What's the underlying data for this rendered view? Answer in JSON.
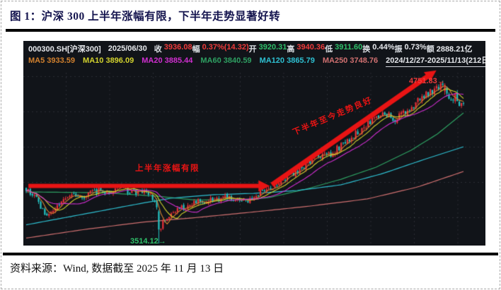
{
  "figure": {
    "title": "图 1：沪深 300 上半年涨幅有限，下半年走势显著好转",
    "source": "资料来源：Wind, 数据截至 2025 年 11 月 13 日"
  },
  "chart": {
    "header": {
      "symbol": "000300.SH[沪深300]",
      "date": "2025/06/30",
      "fields": [
        {
          "label": "收",
          "value": "3936.08",
          "color": "#ef3b3b"
        },
        {
          "label": "幅",
          "value": "0.37%(14.32)",
          "color": "#ef3b3b"
        },
        {
          "label": "开",
          "value": "3920.31",
          "color": "#2fc06a"
        },
        {
          "label": "高",
          "value": "3940.36",
          "color": "#ef3b3b"
        },
        {
          "label": "低",
          "value": "3911.60",
          "color": "#2fc06a"
        },
        {
          "label": "换",
          "value": "0.44%",
          "color": "#e6e8ec"
        },
        {
          "label": "振",
          "value": "0.73%",
          "color": "#e6e8ec"
        },
        {
          "label": "额",
          "value": "2888.21亿",
          "color": "#e6e8ec"
        }
      ],
      "ma_labels": [
        {
          "text": "MA5 3933.59",
          "color": "#d2812e"
        },
        {
          "text": "MA10 3896.09",
          "color": "#d3d32e"
        },
        {
          "text": "MA20 3885.44",
          "color": "#d02ed0"
        },
        {
          "text": "MA60 3840.59",
          "color": "#2ea062"
        },
        {
          "text": "MA120 3865.79",
          "color": "#2ec0d2"
        },
        {
          "text": "MA250 3748.76",
          "color": "#d07070"
        }
      ],
      "range": "2024/12/27-2025/11/13(212日)",
      "dropdown_icon": "▼"
    },
    "annotations": {
      "first_half": "上半年涨幅有限",
      "second_half": "下半年至今走势良好",
      "high_label": "4751.83→",
      "low_label": "3514.12→",
      "arrow_color": "#e81414",
      "high_color": "#ef3b3b",
      "low_color": "#2fc06a"
    }
  },
  "chart_data": {
    "type": "candlestick",
    "title": "沪深300 日K线 2024/12/27-2025/11/13 (212日)",
    "symbol": "000300.SH 沪深300",
    "bars": 212,
    "marked_high": 4751.83,
    "marked_low": 3514.12,
    "quote": {
      "date": "2025/06/30",
      "close": 3936.08,
      "change_pct": "0.37%",
      "change": 14.32,
      "open": 3920.31,
      "high": 3940.36,
      "low": 3911.6,
      "turnover": "0.44%",
      "amplitude": "0.73%",
      "amount": "2888.21亿"
    },
    "ma_values": {
      "MA5": 3933.59,
      "MA10": 3896.09,
      "MA20": 3885.44,
      "MA60": 3840.59,
      "MA120": 3865.79,
      "MA250": 3748.76
    },
    "y_anchor": {
      "low_price": 3514.12,
      "high_price": 4751.83
    },
    "colors": {
      "up": "#e83038",
      "down": "#25c3c3",
      "background": "#111419",
      "grid": "rgba(195,203,218,0.14)"
    },
    "close_path": [
      [
        0.0,
        3935
      ],
      [
        0.02,
        3880
      ],
      [
        0.045,
        3722
      ],
      [
        0.075,
        3800
      ],
      [
        0.105,
        3895
      ],
      [
        0.135,
        3878
      ],
      [
        0.165,
        3928
      ],
      [
        0.19,
        3918
      ],
      [
        0.215,
        3958
      ],
      [
        0.24,
        3905
      ],
      [
        0.265,
        3912
      ],
      [
        0.285,
        3885
      ],
      [
        0.3,
        3778
      ],
      [
        0.3033,
        3625
      ],
      [
        0.32,
        3705
      ],
      [
        0.35,
        3782
      ],
      [
        0.385,
        3828
      ],
      [
        0.42,
        3848
      ],
      [
        0.45,
        3868
      ],
      [
        0.48,
        3852
      ],
      [
        0.505,
        3836
      ],
      [
        0.53,
        3888
      ],
      [
        0.555,
        3936
      ],
      [
        0.58,
        3992
      ],
      [
        0.61,
        4052
      ],
      [
        0.64,
        4122
      ],
      [
        0.665,
        4198
      ],
      [
        0.69,
        4192
      ],
      [
        0.715,
        4252
      ],
      [
        0.745,
        4332
      ],
      [
        0.775,
        4422
      ],
      [
        0.8,
        4478
      ],
      [
        0.825,
        4522
      ],
      [
        0.845,
        4472
      ],
      [
        0.865,
        4522
      ],
      [
        0.89,
        4598
      ],
      [
        0.915,
        4672
      ],
      [
        0.94,
        4718
      ],
      [
        0.955,
        4742
      ],
      [
        0.965,
        4608
      ],
      [
        0.98,
        4652
      ],
      [
        0.99,
        4588
      ],
      [
        1.0,
        4625
      ]
    ],
    "special_bars": [
      {
        "t": 0.3033,
        "open": 3762,
        "close": 3622,
        "high": 3775,
        "low": 3514.12
      },
      {
        "t": 0.955,
        "open": 4690,
        "close": 4738,
        "high": 4751.83,
        "low": 4662
      }
    ],
    "ma_series": [
      {
        "name": "MA60",
        "color": "#2ea062",
        "points": [
          [
            0.005,
            3912
          ],
          [
            0.18,
            3906
          ],
          [
            0.3,
            3879
          ],
          [
            0.38,
            3852
          ],
          [
            0.47,
            3847
          ],
          [
            0.555,
            3868
          ],
          [
            0.64,
            3934
          ],
          [
            0.72,
            4010
          ],
          [
            0.8,
            4103
          ],
          [
            0.88,
            4234
          ],
          [
            0.94,
            4359
          ],
          [
            1.0,
            4523
          ]
        ]
      },
      {
        "name": "MA120",
        "color": "#2ec0d2",
        "points": [
          [
            0.005,
            3661
          ],
          [
            0.135,
            3743
          ],
          [
            0.265,
            3825
          ],
          [
            0.33,
            3863
          ],
          [
            0.425,
            3890
          ],
          [
            0.52,
            3901
          ],
          [
            0.62,
            3923
          ],
          [
            0.72,
            3967
          ],
          [
            0.815,
            4054
          ],
          [
            0.91,
            4163
          ],
          [
            1.0,
            4261
          ]
        ]
      },
      {
        "name": "MA250",
        "color": "#d07070",
        "points": [
          [
            0.005,
            3558
          ],
          [
            0.135,
            3623
          ],
          [
            0.265,
            3678
          ],
          [
            0.395,
            3716
          ],
          [
            0.525,
            3759
          ],
          [
            0.65,
            3803
          ],
          [
            0.78,
            3858
          ],
          [
            0.895,
            3950
          ],
          [
            1.0,
            4070
          ]
        ]
      }
    ],
    "computed_ma": [
      {
        "name": "MA5",
        "period": 5,
        "color": "#d2812e"
      },
      {
        "name": "MA10",
        "period": 10,
        "color": "#d3d32e"
      },
      {
        "name": "MA20",
        "period": 20,
        "color": "#d02ed0"
      }
    ],
    "arrows": [
      {
        "from": {
          "t": 0.005,
          "price": 3958
        },
        "to": {
          "t": 0.557,
          "price": 3958
        },
        "width": 6
      },
      {
        "from": {
          "t": 0.562,
          "price": 3968
        },
        "to": {
          "t": 0.938,
          "price": 4852
        },
        "width": 7
      }
    ]
  }
}
